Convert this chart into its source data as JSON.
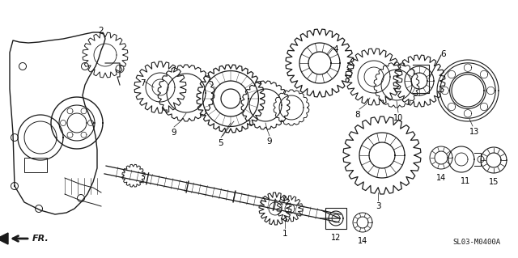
{
  "bg_color": "#ffffff",
  "line_color": "#1a1a1a",
  "ref_code": "SL03-M0400A",
  "arrow_label": "FR.",
  "fig_w": 6.4,
  "fig_h": 3.19,
  "dpi": 100
}
